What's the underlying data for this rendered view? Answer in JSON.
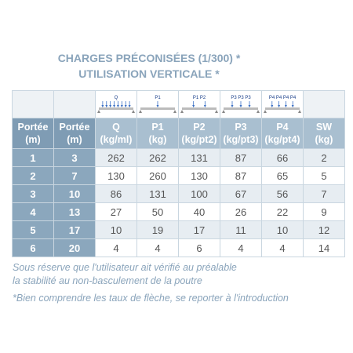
{
  "header": {
    "title_lines": [
      "CHARGES PRÉCONISÉES (1/300) *",
      "UTILISATION VERTICALE *"
    ]
  },
  "table": {
    "icon_labels": [
      "Q",
      "P1",
      "P1  P2",
      "P3 P3 P3",
      "P4 P4 P4 P4"
    ],
    "columns": [
      [
        "Portée",
        "(m)"
      ],
      [
        "Portée",
        "(m)"
      ],
      [
        "Q",
        "(kg/ml)"
      ],
      [
        "P1",
        "(kg)"
      ],
      [
        "P2",
        "(kg/pt2)"
      ],
      [
        "P3",
        "(kg/pt3)"
      ],
      [
        "P4",
        "(kg/pt4)"
      ],
      [
        "SW",
        "(kg)"
      ]
    ],
    "rows": [
      [
        1,
        3,
        262,
        262,
        131,
        87,
        66,
        2
      ],
      [
        2,
        7,
        130,
        260,
        130,
        87,
        65,
        5
      ],
      [
        3,
        10,
        86,
        131,
        100,
        67,
        56,
        7
      ],
      [
        4,
        13,
        27,
        50,
        40,
        26,
        22,
        9
      ],
      [
        5,
        17,
        10,
        19,
        17,
        11,
        10,
        12
      ],
      [
        6,
        20,
        4,
        4,
        6,
        4,
        4,
        14
      ]
    ]
  },
  "notes": [
    "Sous réserve que l'utilisateur ait vérifié au préalable",
    "la stabilité au non-basculement de la poutre",
    "*Bien comprendre les taux de flèche, se reporter à l'introduction"
  ]
}
